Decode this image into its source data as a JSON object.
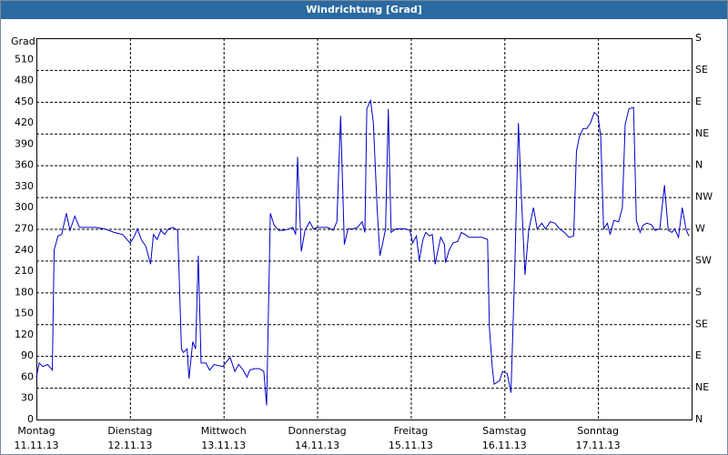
{
  "chart_data": {
    "type": "line",
    "title": "Windrichtung [Grad]",
    "y_label": "Grad",
    "xlim": [
      0,
      7
    ],
    "xticks": [
      {
        "value": 0,
        "label": "Montag",
        "date": "11.11.13"
      },
      {
        "value": 1,
        "label": "Dienstag",
        "date": "12.11.13"
      },
      {
        "value": 2,
        "label": "Mittwoch",
        "date": "13.11.13"
      },
      {
        "value": 3,
        "label": "Donnerstag",
        "date": "14.11.13"
      },
      {
        "value": 4,
        "label": "Freitag",
        "date": "15.11.13"
      },
      {
        "value": 5,
        "label": "Samstag",
        "date": "16.11.13"
      },
      {
        "value": 6,
        "label": "Sonntag",
        "date": "17.11.13"
      }
    ],
    "ylim": [
      0,
      540
    ],
    "yticks": [
      0,
      30,
      60,
      90,
      120,
      150,
      180,
      210,
      240,
      270,
      300,
      330,
      360,
      390,
      420,
      450,
      480,
      510
    ],
    "y2lim": [
      0,
      540
    ],
    "y2ticks": [
      {
        "value": 0,
        "label": "N"
      },
      {
        "value": 45,
        "label": "NE"
      },
      {
        "value": 90,
        "label": "E"
      },
      {
        "value": 135,
        "label": "SE"
      },
      {
        "value": 180,
        "label": "S"
      },
      {
        "value": 225,
        "label": "SW"
      },
      {
        "value": 270,
        "label": "W"
      },
      {
        "value": 315,
        "label": "NW"
      },
      {
        "value": 360,
        "label": "N"
      },
      {
        "value": 405,
        "label": "NE"
      },
      {
        "value": 450,
        "label": "E"
      },
      {
        "value": 495,
        "label": "SE"
      },
      {
        "value": 540,
        "label": "S"
      }
    ],
    "grid": true,
    "series": [
      {
        "color": "#0000c8",
        "x": [
          0,
          0.03,
          0.07,
          0.12,
          0.17,
          0.19,
          0.23,
          0.27,
          0.32,
          0.36,
          0.41,
          0.46,
          0.53,
          0.63,
          0.73,
          0.83,
          0.92,
          1.0,
          1.04,
          1.08,
          1.12,
          1.17,
          1.22,
          1.25,
          1.29,
          1.33,
          1.37,
          1.41,
          1.46,
          1.51,
          1.55,
          1.57,
          1.61,
          1.63,
          1.67,
          1.7,
          1.73,
          1.76,
          1.81,
          1.85,
          1.9,
          1.99,
          2.07,
          2.12,
          2.16,
          2.21,
          2.25,
          2.28,
          2.33,
          2.38,
          2.43,
          2.46,
          2.5,
          2.54,
          2.59,
          2.64,
          2.7,
          2.74,
          2.77,
          2.79,
          2.83,
          2.87,
          2.92,
          2.96,
          3.01,
          3.11,
          3.17,
          3.21,
          3.25,
          3.29,
          3.33,
          3.38,
          3.43,
          3.48,
          3.51,
          3.53,
          3.57,
          3.6,
          3.64,
          3.67,
          3.7,
          3.73,
          3.76,
          3.79,
          3.84,
          3.94,
          3.99,
          4.02,
          4.06,
          4.09,
          4.13,
          4.16,
          4.2,
          4.23,
          4.26,
          4.29,
          4.32,
          4.36,
          4.37,
          4.41,
          4.45,
          4.5,
          4.54,
          4.58,
          4.62,
          4.67,
          4.72,
          4.76,
          4.82,
          4.84,
          4.87,
          4.89,
          4.95,
          4.98,
          5.03,
          5.07,
          5.11,
          5.15,
          5.18,
          5.22,
          5.26,
          5.31,
          5.35,
          5.4,
          5.44,
          5.49,
          5.54,
          5.59,
          5.64,
          5.69,
          5.74,
          5.77,
          5.8,
          5.84,
          5.88,
          5.92,
          5.96,
          6.0,
          6.03,
          6.06,
          6.1,
          6.13,
          6.17,
          6.22,
          6.26,
          6.29,
          6.33,
          6.38,
          6.41,
          6.45,
          6.48,
          6.52,
          6.57,
          6.61,
          6.66,
          6.71,
          6.75,
          6.79,
          6.82,
          6.86,
          6.9,
          6.94,
          6.97
        ],
        "values": [
          60,
          80,
          75,
          78,
          70,
          240,
          260,
          262,
          292,
          268,
          288,
          272,
          272,
          272,
          270,
          265,
          262,
          250,
          258,
          270,
          255,
          245,
          220,
          262,
          255,
          268,
          262,
          270,
          272,
          268,
          100,
          95,
          100,
          58,
          110,
          100,
          232,
          80,
          80,
          70,
          78,
          75,
          88,
          68,
          78,
          70,
          60,
          70,
          72,
          72,
          68,
          20,
          292,
          275,
          268,
          268,
          270,
          272,
          262,
          372,
          238,
          268,
          280,
          270,
          272,
          272,
          268,
          280,
          430,
          248,
          270,
          270,
          272,
          280,
          265,
          440,
          452,
          420,
          300,
          232,
          250,
          270,
          440,
          265,
          270,
          270,
          268,
          250,
          260,
          225,
          255,
          265,
          260,
          262,
          220,
          240,
          258,
          248,
          222,
          240,
          250,
          252,
          265,
          262,
          258,
          258,
          258,
          258,
          255,
          130,
          75,
          50,
          55,
          68,
          65,
          38,
          210,
          420,
          320,
          205,
          268,
          300,
          270,
          278,
          270,
          280,
          278,
          270,
          265,
          258,
          260,
          380,
          400,
          412,
          412,
          420,
          435,
          430,
          400,
          270,
          278,
          262,
          282,
          280,
          300,
          418,
          440,
          442,
          282,
          265,
          275,
          278,
          276,
          268,
          270,
          332,
          268,
          265,
          270,
          258,
          300,
          270,
          260
        ]
      }
    ]
  }
}
